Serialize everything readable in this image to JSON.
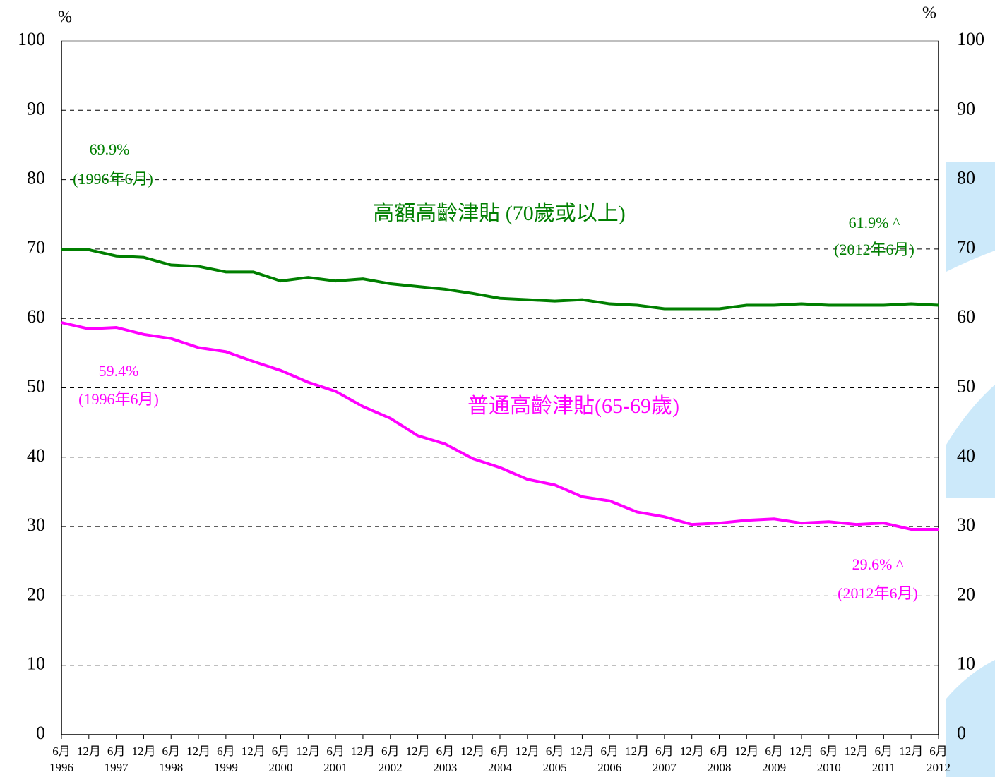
{
  "chart_data": {
    "type": "line",
    "y_unit_left": "%",
    "y_unit_right": "%",
    "categories": [
      "6月",
      "12月",
      "6月",
      "12月",
      "6月",
      "12月",
      "6月",
      "12月",
      "6月",
      "12月",
      "6月",
      "12月",
      "6月",
      "12月",
      "6月",
      "12月",
      "6月",
      "12月",
      "6月",
      "12月",
      "6月",
      "12月",
      "6月",
      "12月",
      "6月",
      "12月",
      "6月",
      "12月",
      "6月",
      "12月",
      "6月",
      "12月",
      "6月"
    ],
    "years": [
      "1996",
      "1997",
      "1998",
      "1999",
      "2000",
      "2001",
      "2002",
      "2003",
      "2004",
      "2005",
      "2006",
      "2007",
      "2008",
      "2009",
      "2010",
      "2011",
      "2012"
    ],
    "series": [
      {
        "name": "高額高齡津貼 (70歲或以上)",
        "color": "#007f00",
        "values": [
          69.9,
          69.9,
          69.0,
          68.8,
          67.7,
          67.5,
          66.7,
          66.7,
          65.4,
          65.9,
          65.4,
          65.7,
          65.0,
          64.6,
          64.2,
          63.6,
          62.9,
          62.7,
          62.5,
          62.7,
          62.1,
          61.9,
          61.4,
          61.4,
          61.4,
          61.9,
          61.9,
          62.1,
          61.9,
          61.9,
          61.9,
          62.1,
          61.9
        ],
        "annotations": [
          "69.9%",
          "(1996年6月)",
          "61.9% ^",
          "(2012年6月)"
        ]
      },
      {
        "name": "普通高齡津貼(65-69歲)",
        "color": "#ff00ff",
        "values": [
          59.4,
          58.5,
          58.7,
          57.7,
          57.1,
          55.8,
          55.2,
          53.8,
          52.5,
          50.8,
          49.5,
          47.3,
          45.6,
          43.1,
          41.9,
          39.8,
          38.5,
          36.8,
          36.0,
          34.3,
          33.7,
          32.1,
          31.4,
          30.3,
          30.5,
          30.9,
          31.1,
          30.5,
          30.7,
          30.3,
          30.5,
          29.6,
          29.6
        ],
        "annotations": [
          "59.4%",
          "(1996年6月)",
          "29.6% ^",
          "(2012年6月)"
        ]
      }
    ],
    "ylim": [
      0,
      100
    ],
    "yticks": [
      0,
      10,
      20,
      30,
      40,
      50,
      60,
      70,
      80,
      90,
      100
    ],
    "y2lim": [
      0,
      100
    ],
    "y2ticks": [
      0,
      10,
      20,
      30,
      40,
      50,
      60,
      70,
      80,
      90,
      100
    ],
    "grid": true
  }
}
